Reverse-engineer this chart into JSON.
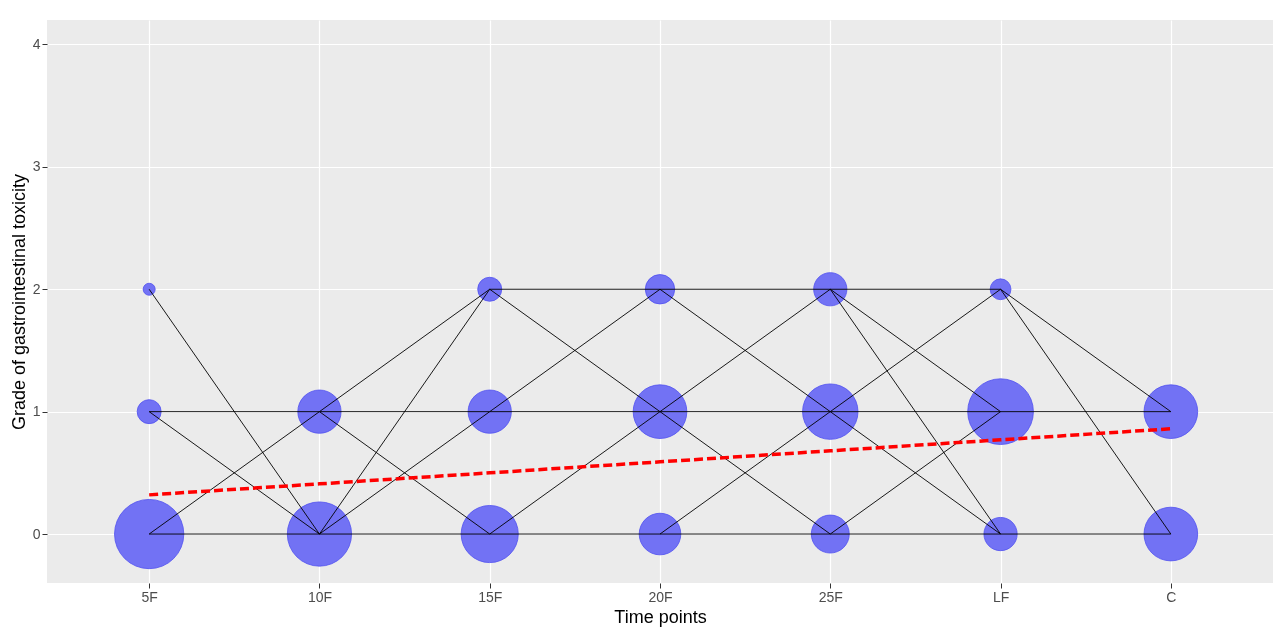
{
  "chart_data": {
    "type": "bubble",
    "xlabel": "Time points",
    "ylabel": "Grade of gastrointestinal toxicity",
    "categories": [
      "5F",
      "10F",
      "15F",
      "20F",
      "25F",
      "LF",
      "C"
    ],
    "ylim": [
      -0.4,
      4.2
    ],
    "yticks": [
      0,
      1,
      2,
      3,
      4
    ],
    "grid": true,
    "series": [
      {
        "color": "#7272f4",
        "values": [
          0,
          0,
          0,
          0,
          0,
          0,
          0
        ],
        "sizes": [
          1,
          0.86,
          0.68,
          0.36,
          0.3,
          0.23,
          0.6
        ]
      },
      {
        "color": "#7272f4",
        "values": [
          1,
          1,
          1,
          1,
          1,
          1,
          1
        ],
        "sizes": [
          0.12,
          0.39,
          0.39,
          0.6,
          0.64,
          0.9,
          0.6
        ]
      },
      {
        "color": "#7272f4",
        "values": [
          2,
          null,
          2,
          2,
          2,
          2,
          null
        ],
        "sizes": [
          0.03,
          null,
          0.12,
          0.18,
          0.23,
          0.09,
          null
        ]
      },
      {
        "type": "line",
        "color": "#000000",
        "values": [
          0,
          0,
          0,
          0,
          0,
          0,
          0
        ]
      },
      {
        "type": "line",
        "color": "#000000",
        "values": [
          1,
          1,
          1,
          1,
          1,
          1,
          1
        ]
      },
      {
        "type": "line",
        "color": "#000000",
        "x": [
          "15F",
          "20F",
          "25F",
          "LF"
        ],
        "values": [
          2,
          2,
          2,
          2
        ]
      },
      {
        "type": "line",
        "color": "#000000",
        "x": [
          "5F",
          "10F",
          "15F"
        ],
        "values": [
          0,
          1,
          2
        ]
      },
      {
        "type": "line",
        "color": "#000000",
        "x": [
          "10F",
          "15F",
          "20F"
        ],
        "values": [
          0,
          1,
          2
        ]
      },
      {
        "type": "line",
        "color": "#000000",
        "x": [
          "15F",
          "20F",
          "25F"
        ],
        "values": [
          0,
          1,
          2
        ]
      },
      {
        "type": "line",
        "color": "#000000",
        "x": [
          "20F",
          "25F",
          "LF"
        ],
        "values": [
          0,
          1,
          2
        ]
      },
      {
        "type": "line",
        "color": "#000000",
        "x": [
          "15F",
          "20F",
          "25F"
        ],
        "values": [
          2,
          1,
          0
        ]
      },
      {
        "type": "line",
        "color": "#000000",
        "x": [
          "20F",
          "25F",
          "LF"
        ],
        "values": [
          2,
          1,
          0
        ]
      },
      {
        "type": "line",
        "color": "#000000",
        "x": [
          "5F",
          "10F"
        ],
        "values": [
          2,
          0
        ]
      },
      {
        "type": "line",
        "color": "#000000",
        "x": [
          "5F",
          "10F"
        ],
        "values": [
          1,
          0
        ]
      },
      {
        "type": "line",
        "color": "#000000",
        "x": [
          "10F",
          "15F"
        ],
        "values": [
          0,
          2
        ]
      },
      {
        "type": "line",
        "color": "#000000",
        "x": [
          "10F",
          "15F"
        ],
        "values": [
          1,
          0
        ]
      },
      {
        "type": "line",
        "color": "#000000",
        "x": [
          "25F",
          "LF"
        ],
        "values": [
          2,
          1
        ]
      },
      {
        "type": "line",
        "color": "#000000",
        "x": [
          "25F",
          "LF"
        ],
        "values": [
          2,
          0
        ]
      },
      {
        "type": "line",
        "color": "#000000",
        "x": [
          "25F",
          "LF"
        ],
        "values": [
          0,
          1
        ]
      },
      {
        "type": "line",
        "color": "#000000",
        "x": [
          "LF",
          "C"
        ],
        "values": [
          2,
          1
        ]
      },
      {
        "type": "line",
        "color": "#000000",
        "x": [
          "LF",
          "C"
        ],
        "values": [
          2,
          0
        ]
      },
      {
        "type": "line",
        "color": "#ff0000",
        "line_style": "dashed",
        "values": [
          0.32,
          0.41,
          0.5,
          0.59,
          0.68,
          0.77,
          0.86
        ]
      }
    ]
  }
}
